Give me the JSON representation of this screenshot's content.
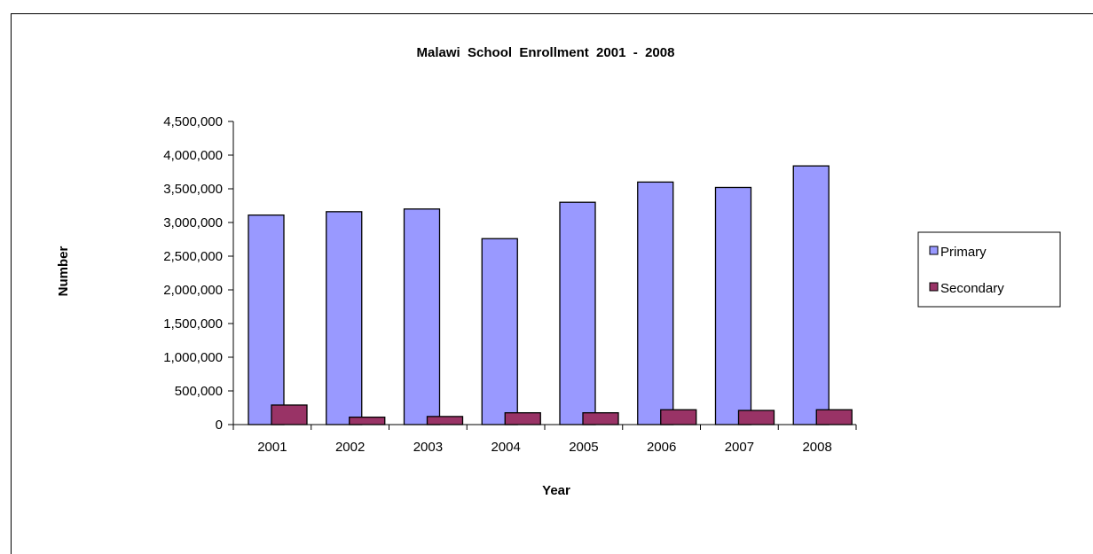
{
  "chart_data": {
    "type": "bar",
    "title": "Malawi  School  Enrollment  2001  -  2008",
    "xlabel": "Year",
    "ylabel": "Number",
    "categories": [
      "2001",
      "2002",
      "2003",
      "2004",
      "2005",
      "2006",
      "2007",
      "2008"
    ],
    "series": [
      {
        "name": "Primary",
        "color": "#9999ff",
        "values": [
          3110000,
          3160000,
          3200000,
          2760000,
          3300000,
          3600000,
          3520000,
          3840000
        ]
      },
      {
        "name": "Secondary",
        "color": "#993366",
        "values": [
          290000,
          110000,
          120000,
          175000,
          175000,
          220000,
          210000,
          220000
        ]
      }
    ],
    "ylim": [
      0,
      4500000
    ],
    "yticks": [
      {
        "value": 0,
        "label": "0"
      },
      {
        "value": 500000,
        "label": "500,000"
      },
      {
        "value": 1000000,
        "label": "1,000,000"
      },
      {
        "value": 1500000,
        "label": "1,500,000"
      },
      {
        "value": 2000000,
        "label": "2,000,000"
      },
      {
        "value": 2500000,
        "label": "2,500,000"
      },
      {
        "value": 3000000,
        "label": "3,000,000"
      },
      {
        "value": 3500000,
        "label": "3,500,000"
      },
      {
        "value": 4000000,
        "label": "4,000,000"
      },
      {
        "value": 4500000,
        "label": "4,500,000"
      }
    ],
    "grid": false,
    "legend_position": "right"
  }
}
